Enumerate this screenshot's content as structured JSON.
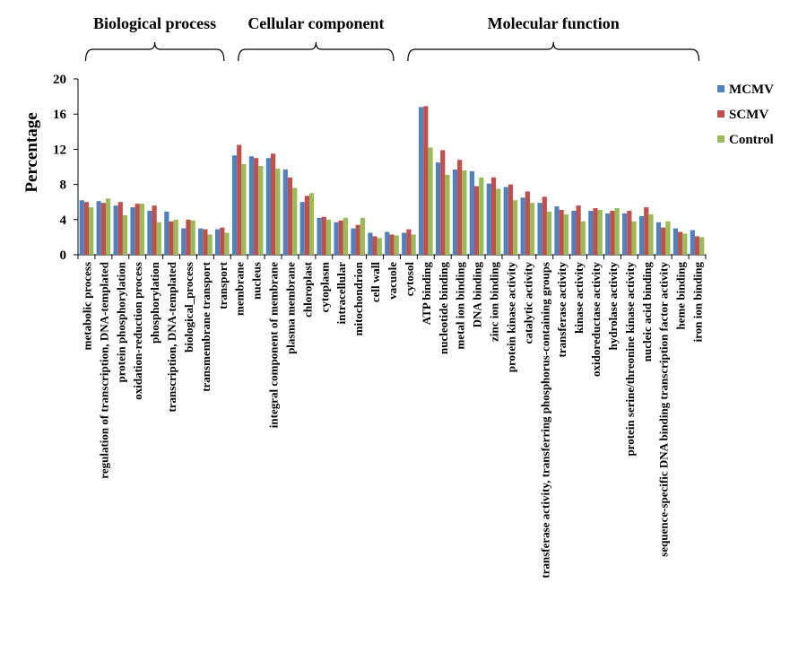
{
  "chart_data": {
    "type": "bar",
    "ylabel": "Percentage",
    "ylim": [
      0,
      20
    ],
    "yticks": [
      "0",
      "4",
      "8",
      "12",
      "16",
      "20"
    ],
    "grid": false,
    "legend_position": "right",
    "groups": [
      {
        "title": "Biological process",
        "start": 0,
        "end": 8
      },
      {
        "title": "Cellular component",
        "start": 9,
        "end": 18
      },
      {
        "title": "Molecular function",
        "start": 19,
        "end": 36
      }
    ],
    "categories": [
      "metabolic process",
      "regulation of transcription, DNA-templated",
      "protein phosphorylation",
      "oxidation-reduction process",
      "phosphorylation",
      "transcription, DNA-templated",
      "biological_process",
      "transmembrane transport",
      "transport",
      "membrane",
      "nucleus",
      "integral component of membrane",
      "plasma membrane",
      "chloroplast",
      "cytoplasm",
      "intracellular",
      "mitochondrion",
      "cell wall",
      "vacuole",
      "cytosol",
      "ATP binding",
      "nucleotide binding",
      "metal ion binding",
      "DNA binding",
      "zinc ion binding",
      "protein kinase activity",
      "catalytic activity",
      "transferase activity, transferring phosphorus-containing groups",
      "transferase activity",
      "kinase activity",
      "oxidoreductase activity",
      "hydrolase activity",
      "protein serine/threonine kinase activity",
      "nucleic acid binding",
      "sequence-specific DNA binding transcription factor activity",
      "heme binding",
      "iron ion binding"
    ],
    "series": [
      {
        "name": "MCMV",
        "color": "#4f81bd",
        "values": [
          6.2,
          6.1,
          5.6,
          5.4,
          5.0,
          4.9,
          3.0,
          3.0,
          2.9,
          11.3,
          11.2,
          11.0,
          9.7,
          6.0,
          4.2,
          3.7,
          3.0,
          2.5,
          2.6,
          2.5,
          16.8,
          10.5,
          9.7,
          9.5,
          8.1,
          7.7,
          6.5,
          5.9,
          5.5,
          5.0,
          5.0,
          4.7,
          4.7,
          4.4,
          3.7,
          3.0,
          2.8
        ]
      },
      {
        "name": "SCMV",
        "color": "#c0504d",
        "values": [
          6.0,
          5.9,
          6.0,
          5.8,
          5.6,
          3.8,
          4.0,
          2.9,
          3.1,
          12.5,
          11.0,
          11.5,
          8.8,
          6.7,
          4.3,
          3.9,
          3.4,
          2.1,
          2.3,
          2.9,
          16.9,
          11.9,
          10.8,
          7.8,
          8.8,
          8.0,
          7.2,
          6.6,
          5.1,
          5.6,
          5.3,
          5.0,
          5.0,
          5.4,
          3.1,
          2.6,
          2.1
        ]
      },
      {
        "name": "Control",
        "color": "#9bbb59",
        "values": [
          5.4,
          6.4,
          4.5,
          5.8,
          3.7,
          4.0,
          3.9,
          2.3,
          2.5,
          10.3,
          10.1,
          9.8,
          7.6,
          7.0,
          4.0,
          4.2,
          4.2,
          1.9,
          2.2,
          2.3,
          12.2,
          9.1,
          9.6,
          8.8,
          7.5,
          6.2,
          5.9,
          4.9,
          4.6,
          3.8,
          5.1,
          5.3,
          3.8,
          4.6,
          3.8,
          2.4,
          2.0
        ]
      }
    ]
  }
}
